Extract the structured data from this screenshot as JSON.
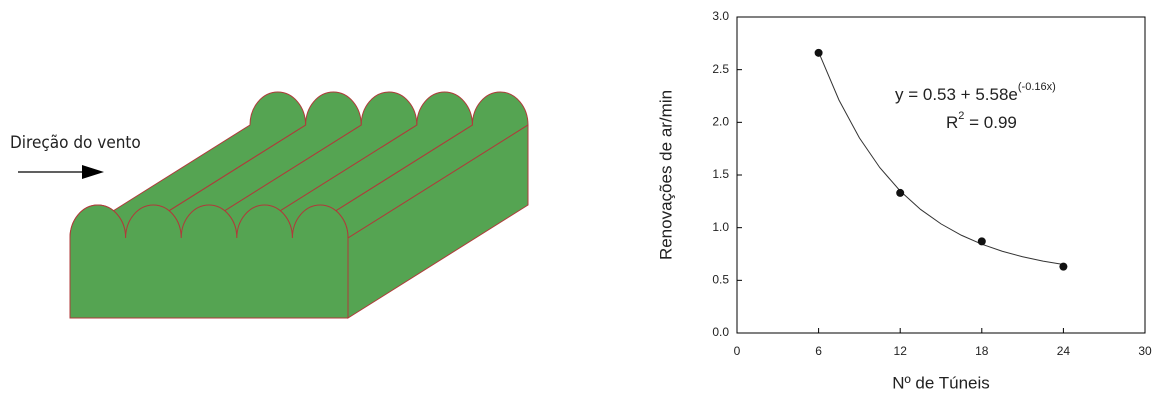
{
  "illustration": {
    "label": "Direção do vento"
  },
  "chart_data": {
    "type": "scatter",
    "x": [
      6,
      12,
      18,
      24
    ],
    "values": [
      2.66,
      1.33,
      0.87,
      0.63
    ],
    "color": "#111111",
    "fit": {
      "x": [
        6,
        7.5,
        9,
        10.5,
        12,
        13.5,
        15,
        16.5,
        18,
        19.5,
        21,
        22.5,
        24
      ],
      "values": [
        2.667,
        2.211,
        1.852,
        1.57,
        1.348,
        1.173,
        1.036,
        0.928,
        0.843,
        0.776,
        0.724,
        0.682,
        0.65
      ]
    },
    "equation": [
      "y = 0.53 + 5.58e",
      "(-0.16x)"
    ],
    "r2": [
      "R",
      "2",
      " = 0.99"
    ],
    "x_label": "Nº de Túneis",
    "y_label": "Renovações de ar/min",
    "xlim": [
      0,
      30
    ],
    "xticks": [
      0,
      6,
      12,
      18,
      24,
      30
    ],
    "ylim": [
      0,
      3
    ],
    "yticks": [
      {
        "value": 0,
        "label": "0.0"
      },
      0.5,
      {
        "value": 1,
        "label": "1.0"
      },
      1.5,
      {
        "value": 2,
        "label": "2.0"
      },
      2.5,
      {
        "value": 3,
        "label": "3.0"
      }
    ]
  }
}
